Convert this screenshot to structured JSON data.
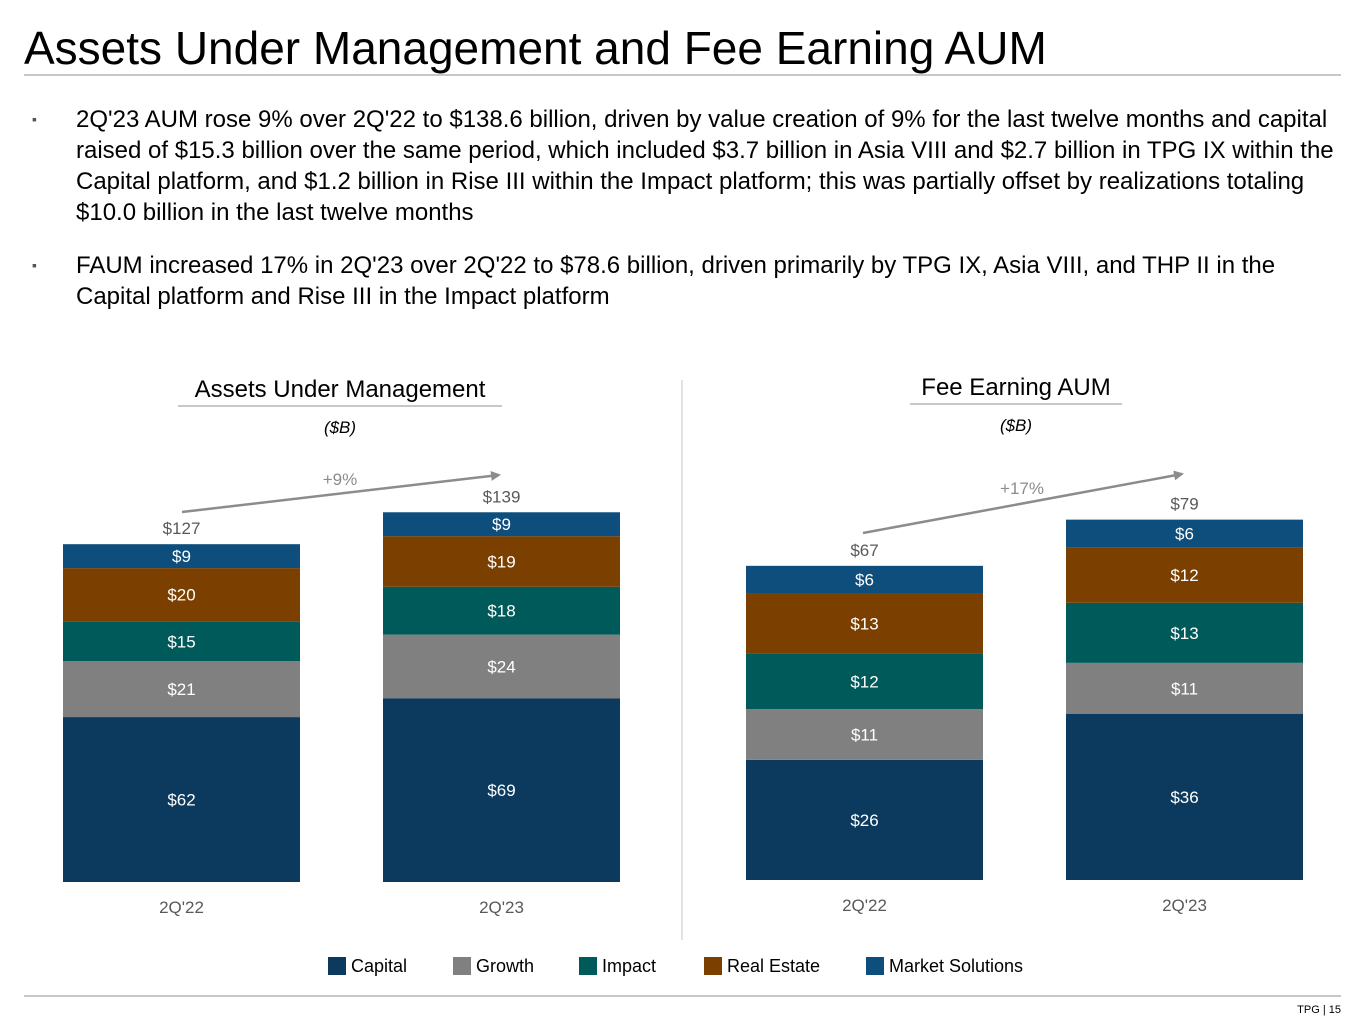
{
  "page": {
    "title": "Assets Under Management and Fee Earning AUM",
    "bullets": [
      "2Q'23 AUM rose 9% over 2Q'22 to $138.6 billion, driven by value creation of 9% for the last twelve months and capital raised of $15.3 billion over the same period, which included $3.7 billion in Asia VIII and $2.7 billion in TPG IX within the Capital platform, and $1.2 billion in Rise III within the Impact platform; this was partially offset by realizations totaling $10.0 billion in the last twelve months",
      "FAUM increased 17% in 2Q'23 over 2Q'22 to $78.6 billion, driven primarily by TPG IX, Asia VIII, and THP II in the Capital platform and Rise III in the Impact platform"
    ],
    "bullet_glyph": "▪",
    "footer": "TPG | 15"
  },
  "chart_data": [
    {
      "type": "bar",
      "stacked": true,
      "title": "Assets Under Management",
      "subtitle": "($B)",
      "categories": [
        "2Q'22",
        "2Q'23"
      ],
      "totals": [
        "$127",
        "$139"
      ],
      "growth_label": "+9%",
      "ylim": [
        0,
        139
      ],
      "series": [
        {
          "name": "Capital",
          "color": "#0b3a5e",
          "values": [
            62,
            69
          ]
        },
        {
          "name": "Growth",
          "color": "#808080",
          "values": [
            21,
            24
          ]
        },
        {
          "name": "Impact",
          "color": "#005a5a",
          "values": [
            15,
            18
          ]
        },
        {
          "name": "Real Estate",
          "color": "#7b3f00",
          "values": [
            20,
            19
          ]
        },
        {
          "name": "Market Solutions",
          "color": "#0d4e7c",
          "values": [
            9,
            9
          ]
        }
      ]
    },
    {
      "type": "bar",
      "stacked": true,
      "title": "Fee Earning AUM",
      "subtitle": "($B)",
      "categories": [
        "2Q'22",
        "2Q'23"
      ],
      "totals": [
        "$67",
        "$79"
      ],
      "growth_label": "+17%",
      "ylim": [
        0,
        79
      ],
      "series": [
        {
          "name": "Capital",
          "color": "#0b3a5e",
          "values": [
            26,
            36
          ]
        },
        {
          "name": "Growth",
          "color": "#808080",
          "values": [
            11,
            11
          ]
        },
        {
          "name": "Impact",
          "color": "#005a5a",
          "values": [
            12,
            13
          ]
        },
        {
          "name": "Real Estate",
          "color": "#7b3f00",
          "values": [
            13,
            12
          ]
        },
        {
          "name": "Market Solutions",
          "color": "#0d4e7c",
          "values": [
            6,
            6
          ]
        }
      ]
    }
  ],
  "legend": [
    {
      "label": "Capital",
      "color": "#0b3a5e"
    },
    {
      "label": "Growth",
      "color": "#808080"
    },
    {
      "label": "Impact",
      "color": "#005a5a"
    },
    {
      "label": "Real Estate",
      "color": "#7b3f00"
    },
    {
      "label": "Market Solutions",
      "color": "#0d4e7c"
    }
  ]
}
